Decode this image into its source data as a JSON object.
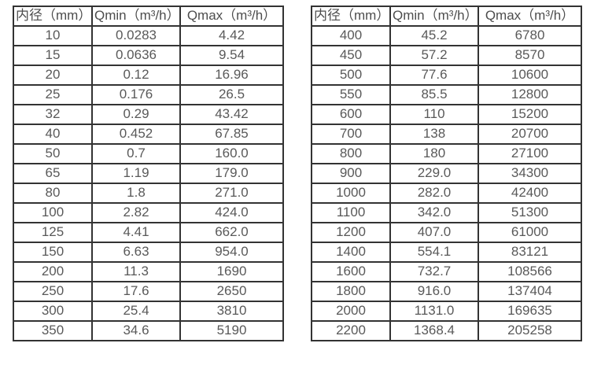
{
  "page": {
    "background": "#ffffff",
    "border_color": "#333333",
    "text_color": "#595959"
  },
  "tables": [
    {
      "name": "flow-table-small-diameters",
      "headers": [
        "内径（mm）",
        "Qmin（m³/h）",
        "Qmax（m³/h）"
      ],
      "rows": [
        [
          "10",
          "0.0283",
          "4.42"
        ],
        [
          "15",
          "0.0636",
          "9.54"
        ],
        [
          "20",
          "0.12",
          "16.96"
        ],
        [
          "25",
          "0.176",
          "26.5"
        ],
        [
          "32",
          "0.29",
          "43.42"
        ],
        [
          "40",
          "0.452",
          "67.85"
        ],
        [
          "50",
          "0.7",
          "160.0"
        ],
        [
          "65",
          "1.19",
          "179.0"
        ],
        [
          "80",
          "1.8",
          "271.0"
        ],
        [
          "100",
          "2.82",
          "424.0"
        ],
        [
          "125",
          "4.41",
          "662.0"
        ],
        [
          "150",
          "6.63",
          "954.0"
        ],
        [
          "200",
          "11.3",
          "1690"
        ],
        [
          "250",
          "17.6",
          "2650"
        ],
        [
          "300",
          "25.4",
          "3810"
        ],
        [
          "350",
          "34.6",
          "5190"
        ]
      ]
    },
    {
      "name": "flow-table-large-diameters",
      "headers": [
        "内径（mm）",
        "Qmin（m³/h）",
        "Qmax（m³/h）"
      ],
      "rows": [
        [
          "400",
          "45.2",
          "6780"
        ],
        [
          "450",
          "57.2",
          "8570"
        ],
        [
          "500",
          "77.6",
          "10600"
        ],
        [
          "550",
          "85.5",
          "12800"
        ],
        [
          "600",
          "110",
          "15200"
        ],
        [
          "700",
          "138",
          "20700"
        ],
        [
          "800",
          "180",
          "27100"
        ],
        [
          "900",
          "229.0",
          "34300"
        ],
        [
          "1000",
          "282.0",
          "42400"
        ],
        [
          "1100",
          "342.0",
          "51300"
        ],
        [
          "1200",
          "407.0",
          "61000"
        ],
        [
          "1400",
          "554.1",
          "83121"
        ],
        [
          "1600",
          "732.7",
          "108566"
        ],
        [
          "1800",
          "916.0",
          "137404"
        ],
        [
          "2000",
          "1131.0",
          "169635"
        ],
        [
          "2200",
          "1368.4",
          "205258"
        ]
      ]
    }
  ]
}
